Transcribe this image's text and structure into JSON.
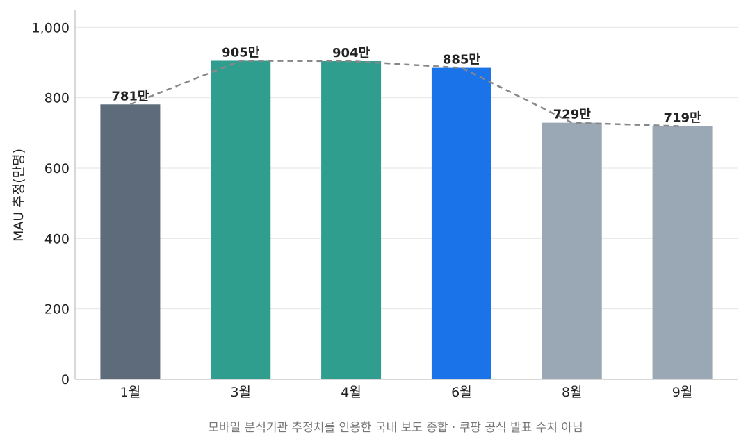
{
  "chart_data": {
    "type": "bar",
    "categories": [
      "1월",
      "3월",
      "4월",
      "6월",
      "8월",
      "9월"
    ],
    "values": [
      781,
      905,
      904,
      885,
      729,
      719
    ],
    "data_labels": [
      "781만",
      "905만",
      "904만",
      "885만",
      "729만",
      "719만"
    ],
    "bar_colors": [
      "#5d6b7a",
      "#2f9e8f",
      "#2f9e8f",
      "#1a73e8",
      "#9aa7b4",
      "#9aa7b4"
    ],
    "trend_line": {
      "style": "dashed",
      "color": "#888888"
    },
    "ylabel": "MAU 추정(만명)",
    "xlabel": "",
    "ylim": [
      0,
      1050
    ],
    "yticks": [
      0,
      200,
      400,
      600,
      800,
      1000
    ],
    "ytick_labels": [
      "0",
      "200",
      "400",
      "600",
      "800",
      "1,000"
    ],
    "grid": true,
    "footnote": "모바일 분석기관 추정치를 인용한 국내 보도 종합 · 쿠팡 공식 발표 수치 아님"
  }
}
